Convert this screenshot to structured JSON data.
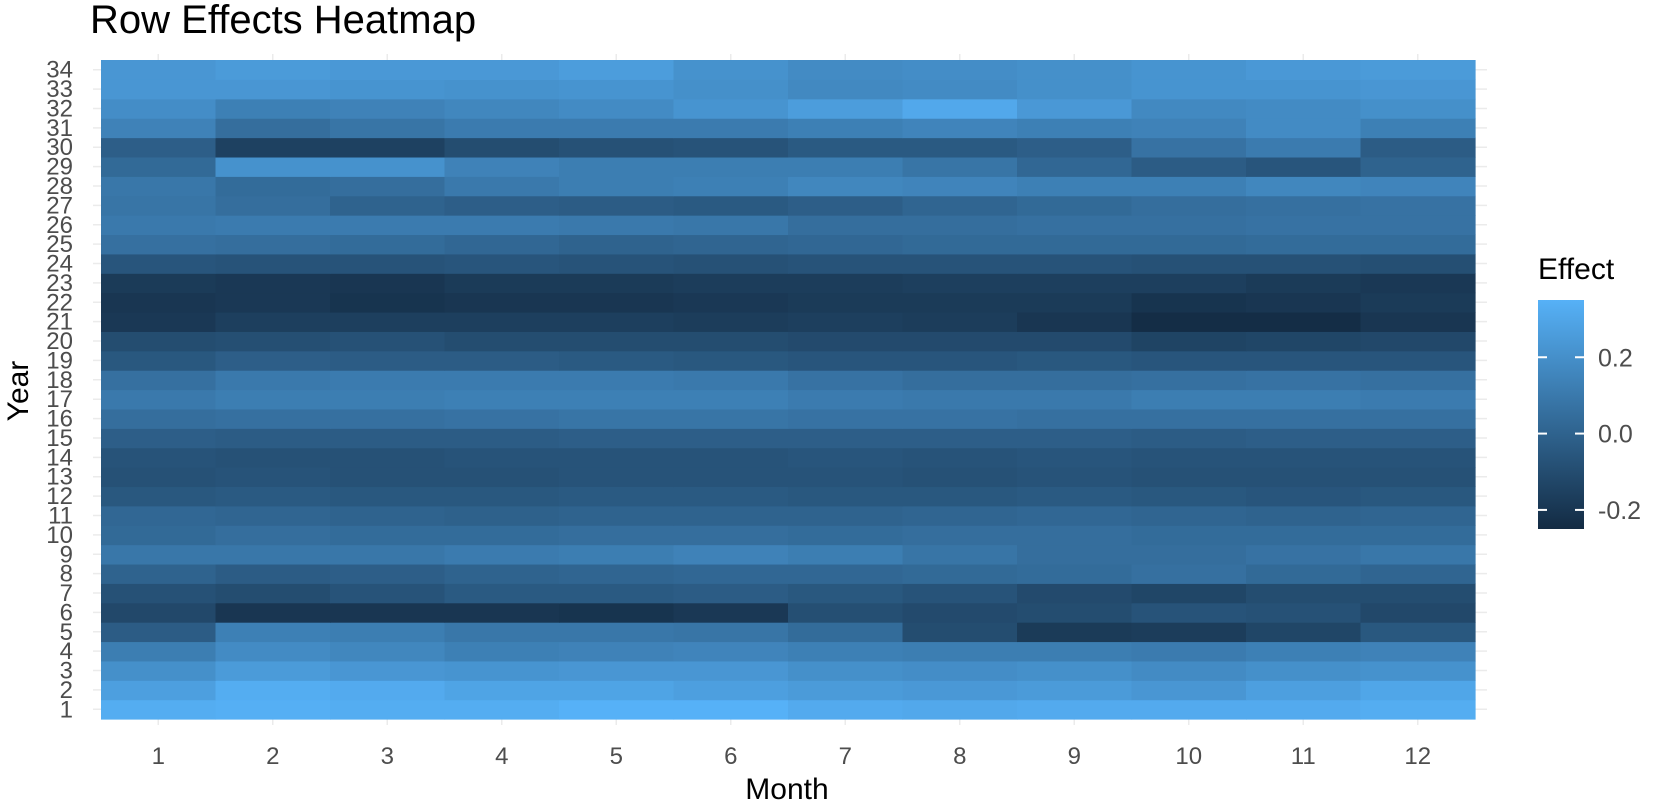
{
  "chart_data": {
    "type": "heatmap",
    "title": "Row Effects Heatmap",
    "xlabel": "Month",
    "ylabel": "Year",
    "x_categories": [
      "1",
      "2",
      "3",
      "4",
      "5",
      "6",
      "7",
      "8",
      "9",
      "10",
      "11",
      "12"
    ],
    "y_categories": [
      "1",
      "2",
      "3",
      "4",
      "5",
      "6",
      "7",
      "8",
      "9",
      "10",
      "11",
      "12",
      "13",
      "14",
      "15",
      "16",
      "17",
      "18",
      "19",
      "20",
      "21",
      "22",
      "23",
      "24",
      "25",
      "26",
      "27",
      "28",
      "29",
      "30",
      "31",
      "32",
      "33",
      "34"
    ],
    "values": [
      [
        0.33,
        0.34,
        0.33,
        0.33,
        0.35,
        0.35,
        0.32,
        0.31,
        0.32,
        0.32,
        0.32,
        0.33
      ],
      [
        0.27,
        0.33,
        0.32,
        0.29,
        0.29,
        0.27,
        0.25,
        0.24,
        0.25,
        0.23,
        0.27,
        0.3
      ],
      [
        0.2,
        0.25,
        0.23,
        0.22,
        0.23,
        0.23,
        0.2,
        0.19,
        0.2,
        0.18,
        0.2,
        0.21
      ],
      [
        0.12,
        0.18,
        0.16,
        0.13,
        0.14,
        0.15,
        0.13,
        0.12,
        0.12,
        0.11,
        0.13,
        0.14
      ],
      [
        -0.03,
        0.13,
        0.12,
        0.09,
        0.09,
        0.08,
        0.04,
        -0.1,
        -0.18,
        -0.17,
        -0.13,
        -0.05
      ],
      [
        -0.12,
        -0.2,
        -0.2,
        -0.2,
        -0.21,
        -0.19,
        -0.09,
        -0.11,
        -0.1,
        -0.07,
        -0.08,
        -0.12
      ],
      [
        -0.08,
        -0.1,
        -0.07,
        -0.04,
        -0.04,
        -0.03,
        -0.05,
        -0.07,
        -0.11,
        -0.13,
        -0.1,
        -0.1
      ],
      [
        0.0,
        -0.03,
        -0.02,
        0.0,
        0.01,
        0.02,
        0.02,
        0.03,
        0.04,
        0.06,
        0.03,
        0.01
      ],
      [
        0.09,
        0.09,
        0.09,
        0.11,
        0.12,
        0.14,
        0.12,
        0.08,
        0.05,
        0.05,
        0.07,
        0.09
      ],
      [
        0.03,
        0.05,
        0.04,
        0.04,
        0.05,
        0.05,
        0.04,
        0.05,
        0.05,
        0.04,
        0.04,
        0.04
      ],
      [
        0.02,
        0.01,
        0.0,
        -0.01,
        0.0,
        0.0,
        0.0,
        0.01,
        0.02,
        0.01,
        0.0,
        0.01
      ],
      [
        -0.05,
        -0.04,
        -0.05,
        -0.05,
        -0.04,
        -0.04,
        -0.05,
        -0.05,
        -0.04,
        -0.05,
        -0.06,
        -0.05
      ],
      [
        -0.08,
        -0.07,
        -0.08,
        -0.08,
        -0.07,
        -0.07,
        -0.07,
        -0.08,
        -0.07,
        -0.08,
        -0.08,
        -0.08
      ],
      [
        -0.07,
        -0.08,
        -0.08,
        -0.07,
        -0.07,
        -0.07,
        -0.06,
        -0.07,
        -0.06,
        -0.07,
        -0.07,
        -0.07
      ],
      [
        -0.02,
        -0.03,
        -0.03,
        -0.03,
        -0.02,
        -0.02,
        -0.02,
        -0.02,
        -0.02,
        -0.03,
        -0.02,
        -0.02
      ],
      [
        0.05,
        0.06,
        0.06,
        0.07,
        0.08,
        0.08,
        0.07,
        0.07,
        0.06,
        0.06,
        0.06,
        0.06
      ],
      [
        0.1,
        0.12,
        0.12,
        0.13,
        0.13,
        0.13,
        0.11,
        0.1,
        0.1,
        0.12,
        0.12,
        0.11
      ],
      [
        0.06,
        0.1,
        0.11,
        0.11,
        0.11,
        0.1,
        0.07,
        0.05,
        0.05,
        0.06,
        0.07,
        0.06
      ],
      [
        -0.05,
        -0.02,
        -0.03,
        -0.03,
        -0.04,
        -0.05,
        -0.06,
        -0.06,
        -0.05,
        -0.06,
        -0.06,
        -0.06
      ],
      [
        -0.1,
        -0.09,
        -0.08,
        -0.1,
        -0.1,
        -0.1,
        -0.11,
        -0.11,
        -0.11,
        -0.14,
        -0.13,
        -0.12
      ],
      [
        -0.19,
        -0.16,
        -0.16,
        -0.16,
        -0.16,
        -0.17,
        -0.16,
        -0.17,
        -0.2,
        -0.24,
        -0.24,
        -0.2
      ],
      [
        -0.2,
        -0.19,
        -0.21,
        -0.2,
        -0.2,
        -0.19,
        -0.18,
        -0.18,
        -0.18,
        -0.21,
        -0.2,
        -0.18
      ],
      [
        -0.18,
        -0.19,
        -0.2,
        -0.18,
        -0.18,
        -0.17,
        -0.17,
        -0.16,
        -0.16,
        -0.16,
        -0.18,
        -0.19
      ],
      [
        -0.06,
        -0.07,
        -0.07,
        -0.06,
        -0.07,
        -0.08,
        -0.07,
        -0.07,
        -0.07,
        -0.08,
        -0.08,
        -0.09
      ],
      [
        0.06,
        0.05,
        0.04,
        0.02,
        0.0,
        0.01,
        0.02,
        0.03,
        0.03,
        0.03,
        0.04,
        0.04
      ],
      [
        0.1,
        0.11,
        0.11,
        0.11,
        0.1,
        0.09,
        0.05,
        0.05,
        0.06,
        0.06,
        0.07,
        0.07
      ],
      [
        0.08,
        0.05,
        0.0,
        -0.02,
        -0.03,
        -0.04,
        -0.02,
        0.01,
        0.03,
        0.05,
        0.06,
        0.07
      ],
      [
        0.09,
        0.04,
        0.05,
        0.1,
        0.12,
        0.13,
        0.16,
        0.15,
        0.13,
        0.13,
        0.16,
        0.15
      ],
      [
        0.03,
        0.21,
        0.21,
        0.14,
        0.12,
        0.12,
        0.12,
        0.08,
        0.02,
        -0.03,
        -0.06,
        0.0
      ],
      [
        -0.02,
        -0.15,
        -0.15,
        -0.1,
        -0.08,
        -0.07,
        -0.04,
        -0.04,
        -0.02,
        0.07,
        0.11,
        -0.03
      ],
      [
        0.14,
        0.05,
        0.08,
        0.11,
        0.11,
        0.11,
        0.13,
        0.15,
        0.13,
        0.14,
        0.18,
        0.13
      ],
      [
        0.19,
        0.13,
        0.14,
        0.16,
        0.18,
        0.22,
        0.26,
        0.31,
        0.24,
        0.17,
        0.18,
        0.2
      ],
      [
        0.23,
        0.23,
        0.22,
        0.21,
        0.22,
        0.2,
        0.17,
        0.18,
        0.2,
        0.22,
        0.22,
        0.23
      ],
      [
        0.23,
        0.25,
        0.24,
        0.24,
        0.26,
        0.21,
        0.18,
        0.19,
        0.2,
        0.22,
        0.24,
        0.25
      ]
    ],
    "color_scale": {
      "low": "#132B43",
      "high": "#56B1F7",
      "limits": [
        -0.25,
        0.35
      ]
    },
    "legend": {
      "title": "Effect",
      "breaks": [
        "-0.2",
        "0.0",
        "0.2"
      ],
      "break_values": [
        -0.2,
        0.0,
        0.2
      ],
      "placement": "right"
    },
    "grid": true,
    "panel_background": "#ebebeb"
  }
}
